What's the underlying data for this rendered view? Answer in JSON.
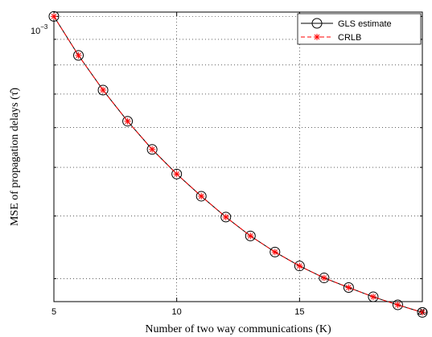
{
  "chart_data": {
    "type": "line",
    "title": "",
    "xlabel": "Number of two way communications (K)",
    "ylabel": "MSE of propagation delays (τ̂)",
    "y_scale": "log",
    "xlim": [
      5,
      20
    ],
    "ylim": [
      0.00027,
      0.00102
    ],
    "x_ticks": [
      5,
      10,
      15,
      20
    ],
    "x_tick_labels": [
      "5",
      "10",
      "15",
      "20"
    ],
    "y_tick_label_base": "10",
    "y_tick_label_exp": "−3",
    "y_major_tick": 0.001,
    "grid": "dotted",
    "legend_position": "top-right",
    "x": [
      5,
      6,
      7,
      8,
      9,
      10,
      11,
      12,
      13,
      14,
      15,
      16,
      17,
      18,
      19,
      20
    ],
    "series": [
      {
        "name": "GLS estimate",
        "color": "#000000",
        "marker": "circle",
        "values": [
          0.001,
          0.000836,
          0.000713,
          0.000618,
          0.000543,
          0.000485,
          0.000438,
          0.000398,
          0.000365,
          0.000339,
          0.000318,
          0.000301,
          0.000288,
          0.000276,
          0.000266,
          0.000257
        ]
      },
      {
        "name": "CRLB",
        "color": "#ff0000",
        "marker": "asterisk",
        "values": [
          0.001,
          0.000836,
          0.000713,
          0.000618,
          0.000543,
          0.000485,
          0.000438,
          0.000398,
          0.000365,
          0.000339,
          0.000318,
          0.000301,
          0.000288,
          0.000276,
          0.000266,
          0.000257
        ]
      }
    ]
  }
}
